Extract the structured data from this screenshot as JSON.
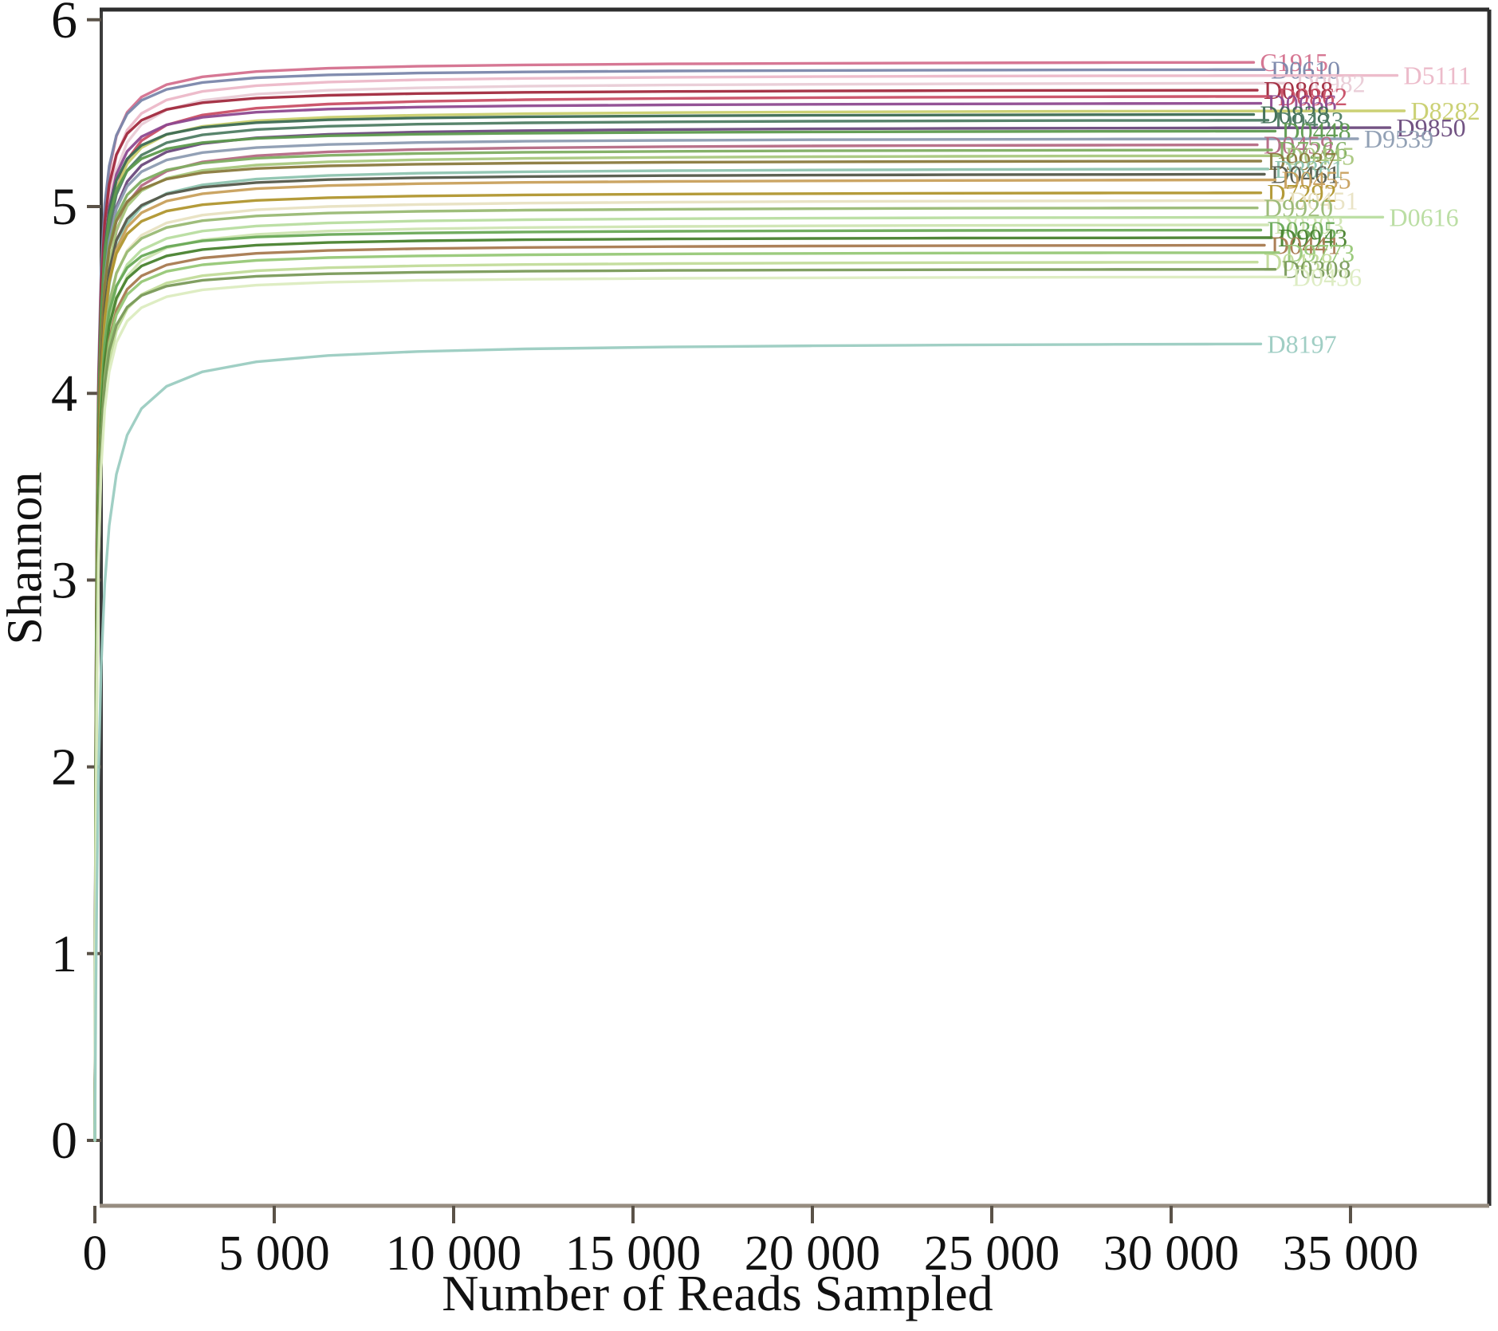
{
  "chart_data": {
    "type": "line",
    "title": "",
    "xlabel": "Number of Reads Sampled",
    "ylabel": "Shannon",
    "xlim": [
      0,
      38900
    ],
    "ylim": [
      -0.4,
      6
    ],
    "grid": false,
    "legend_position": "end-of-line-labels",
    "x_ticks": [
      {
        "value": 0,
        "label": "0"
      },
      {
        "value": 5000,
        "label": "5 000"
      },
      {
        "value": 10000,
        "label": "10 000"
      },
      {
        "value": 15000,
        "label": "15 000"
      },
      {
        "value": 20000,
        "label": "20 000"
      },
      {
        "value": 25000,
        "label": "25 000"
      },
      {
        "value": 30000,
        "label": "30 000"
      },
      {
        "value": 35000,
        "label": "35 000"
      }
    ],
    "y_ticks": [
      {
        "value": 0,
        "label": "0"
      },
      {
        "value": 1,
        "label": "1"
      },
      {
        "value": 2,
        "label": "2"
      },
      {
        "value": 3,
        "label": "3"
      },
      {
        "value": 4,
        "label": "4"
      },
      {
        "value": 5,
        "label": "5"
      },
      {
        "value": 6,
        "label": "6"
      }
    ],
    "curve_model": "shannon(x) = plateau * x / (x + k)  (rarefaction saturation curve)",
    "series": [
      {
        "id": "C1915",
        "color": "#d4708e",
        "plateau": 5.78,
        "end_reads": 32300,
        "k": 45
      },
      {
        "id": "D0610",
        "color": "#7b87ab",
        "plateau": 5.74,
        "end_reads": 32600,
        "k": 40
      },
      {
        "id": "D5111",
        "color": "#ecb8c8",
        "plateau": 5.71,
        "end_reads": 36300,
        "k": 50
      },
      {
        "id": "D0982",
        "color": "#e9ccd6",
        "plateau": 5.67,
        "end_reads": 33300,
        "k": 55
      },
      {
        "id": "D0868",
        "color": "#a12a3e",
        "plateau": 5.63,
        "end_reads": 32400,
        "k": 40
      },
      {
        "id": "D0862",
        "color": "#c94f66",
        "plateau": 5.6,
        "end_reads": 32800,
        "k": 60
      },
      {
        "id": "D0666",
        "color": "#8e4a90",
        "plateau": 5.56,
        "end_reads": 32500,
        "k": 45
      },
      {
        "id": "D8282",
        "color": "#c9cf6e",
        "plateau": 5.52,
        "end_reads": 36500,
        "k": 50
      },
      {
        "id": "D0838",
        "color": "#3d6b53",
        "plateau": 5.5,
        "end_reads": 32300,
        "k": 42
      },
      {
        "id": "D0433",
        "color": "#4f7d64",
        "plateau": 5.47,
        "end_reads": 32700,
        "k": 48
      },
      {
        "id": "D9850",
        "color": "#6b4a7d",
        "plateau": 5.43,
        "end_reads": 36100,
        "k": 52
      },
      {
        "id": "D0448",
        "color": "#5d9a4e",
        "plateau": 5.41,
        "end_reads": 32900,
        "k": 38
      },
      {
        "id": "D9539",
        "color": "#8d9cb2",
        "plateau": 5.37,
        "end_reads": 35200,
        "k": 46
      },
      {
        "id": "D0459",
        "color": "#b56a84",
        "plateau": 5.34,
        "end_reads": 32400,
        "k": 58
      },
      {
        "id": "D7266",
        "color": "#7fae62",
        "plateau": 5.31,
        "end_reads": 32800,
        "k": 44
      },
      {
        "id": "D0445",
        "color": "#a9c87e",
        "plateau": 5.28,
        "end_reads": 33000,
        "k": 50
      },
      {
        "id": "D9937",
        "color": "#8a7a3e",
        "plateau": 5.25,
        "end_reads": 32500,
        "k": 40
      },
      {
        "id": "D8861",
        "color": "#8ec4b0",
        "plateau": 5.21,
        "end_reads": 32700,
        "k": 55
      },
      {
        "id": "D0461",
        "color": "#54584a",
        "plateau": 5.18,
        "end_reads": 32600,
        "k": 45
      },
      {
        "id": "D0455",
        "color": "#c8a05c",
        "plateau": 5.15,
        "end_reads": 32900,
        "k": 48
      },
      {
        "id": "D7292",
        "color": "#b0962f",
        "plateau": 5.08,
        "end_reads": 32500,
        "k": 42
      },
      {
        "id": "D0451",
        "color": "#e8e2c2",
        "plateau": 5.04,
        "end_reads": 33100,
        "k": 52
      },
      {
        "id": "D9920",
        "color": "#99b974",
        "plateau": 5.0,
        "end_reads": 32400,
        "k": 46
      },
      {
        "id": "D0616",
        "color": "#b8dda0",
        "plateau": 4.95,
        "end_reads": 35900,
        "k": 50
      },
      {
        "id": "D0303",
        "color": "#cfe5b2",
        "plateau": 4.91,
        "end_reads": 32700,
        "k": 55
      },
      {
        "id": "D0305",
        "color": "#69a957",
        "plateau": 4.88,
        "end_reads": 32500,
        "k": 40
      },
      {
        "id": "D9943",
        "color": "#49822f",
        "plateau": 4.84,
        "end_reads": 32800,
        "k": 44
      },
      {
        "id": "D0441",
        "color": "#a87a50",
        "plateau": 4.8,
        "end_reads": 32600,
        "k": 48
      },
      {
        "id": "D9773",
        "color": "#97c877",
        "plateau": 4.76,
        "end_reads": 33000,
        "k": 46
      },
      {
        "id": "D0438",
        "color": "#c2dc9a",
        "plateau": 4.71,
        "end_reads": 32400,
        "k": 52
      },
      {
        "id": "D0308",
        "color": "#7a9a5a",
        "plateau": 4.67,
        "end_reads": 32900,
        "k": 42
      },
      {
        "id": "D0436",
        "color": "#dcecc0",
        "plateau": 4.63,
        "end_reads": 33200,
        "k": 50
      },
      {
        "id": "D8197",
        "color": "#9bccc1",
        "plateau": 4.28,
        "end_reads": 32500,
        "k": 120
      }
    ],
    "style": {
      "spine_color_dark": "#2e2e2e",
      "spine_color_left": "#3c3c3c",
      "bottom_axis_color": "#968c80",
      "tick_color": "#5a5248",
      "text_color": "#111111",
      "background": "#ffffff"
    }
  }
}
